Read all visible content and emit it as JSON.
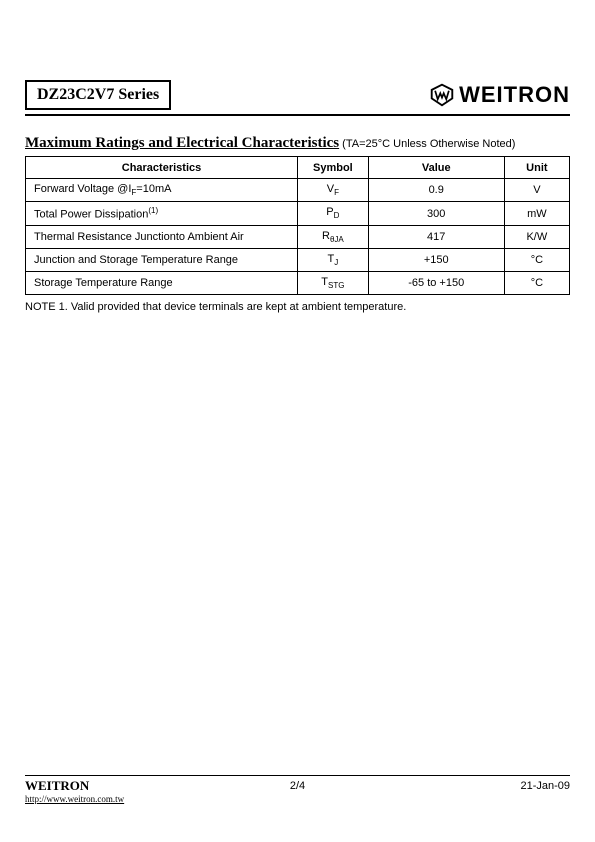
{
  "header": {
    "title": "DZ23C2V7  Series",
    "brand": "WEITRON"
  },
  "section": {
    "title": "Maximum Ratings and Electrical Characteristics",
    "subtitle": " (TA=25°C Unless Otherwise Noted)"
  },
  "table": {
    "headers": {
      "char": "Characteristics",
      "symbol": "Symbol",
      "value": "Value",
      "unit": "Unit"
    },
    "rows": [
      {
        "char_html": "Forward Voltage @I<span class='sub'>F</span>=10mA",
        "symbol_html": "V<span class='sub'>F</span>",
        "value": "0.9",
        "unit": "V"
      },
      {
        "char_html": "Total Power Dissipation<span class='sup'>(1)</span>",
        "symbol_html": "P<span class='sub'>D</span>",
        "value": "300",
        "unit": "mW"
      },
      {
        "char_html": "Thermal Resistance Junctionto Ambient Air",
        "symbol_html": "R<span class='sub'>θJA</span>",
        "value": "417",
        "unit": "K/W"
      },
      {
        "char_html": "Junction and Storage Temperature Range",
        "symbol_html": "T<span class='sub'>J</span>",
        "value": "+150",
        "unit": "°C"
      },
      {
        "char_html": "Storage Temperature Range",
        "symbol_html": "T<span class='sub'>STG</span>",
        "value": "-65 to +150",
        "unit": "°C"
      }
    ]
  },
  "note": "NOTE 1. Valid provided that device terminals are kept at ambient temperature.",
  "footer": {
    "company": "WEITRON",
    "url": "http://www.weitron.com.tw",
    "page": "2/4",
    "date": "21-Jan-09"
  }
}
